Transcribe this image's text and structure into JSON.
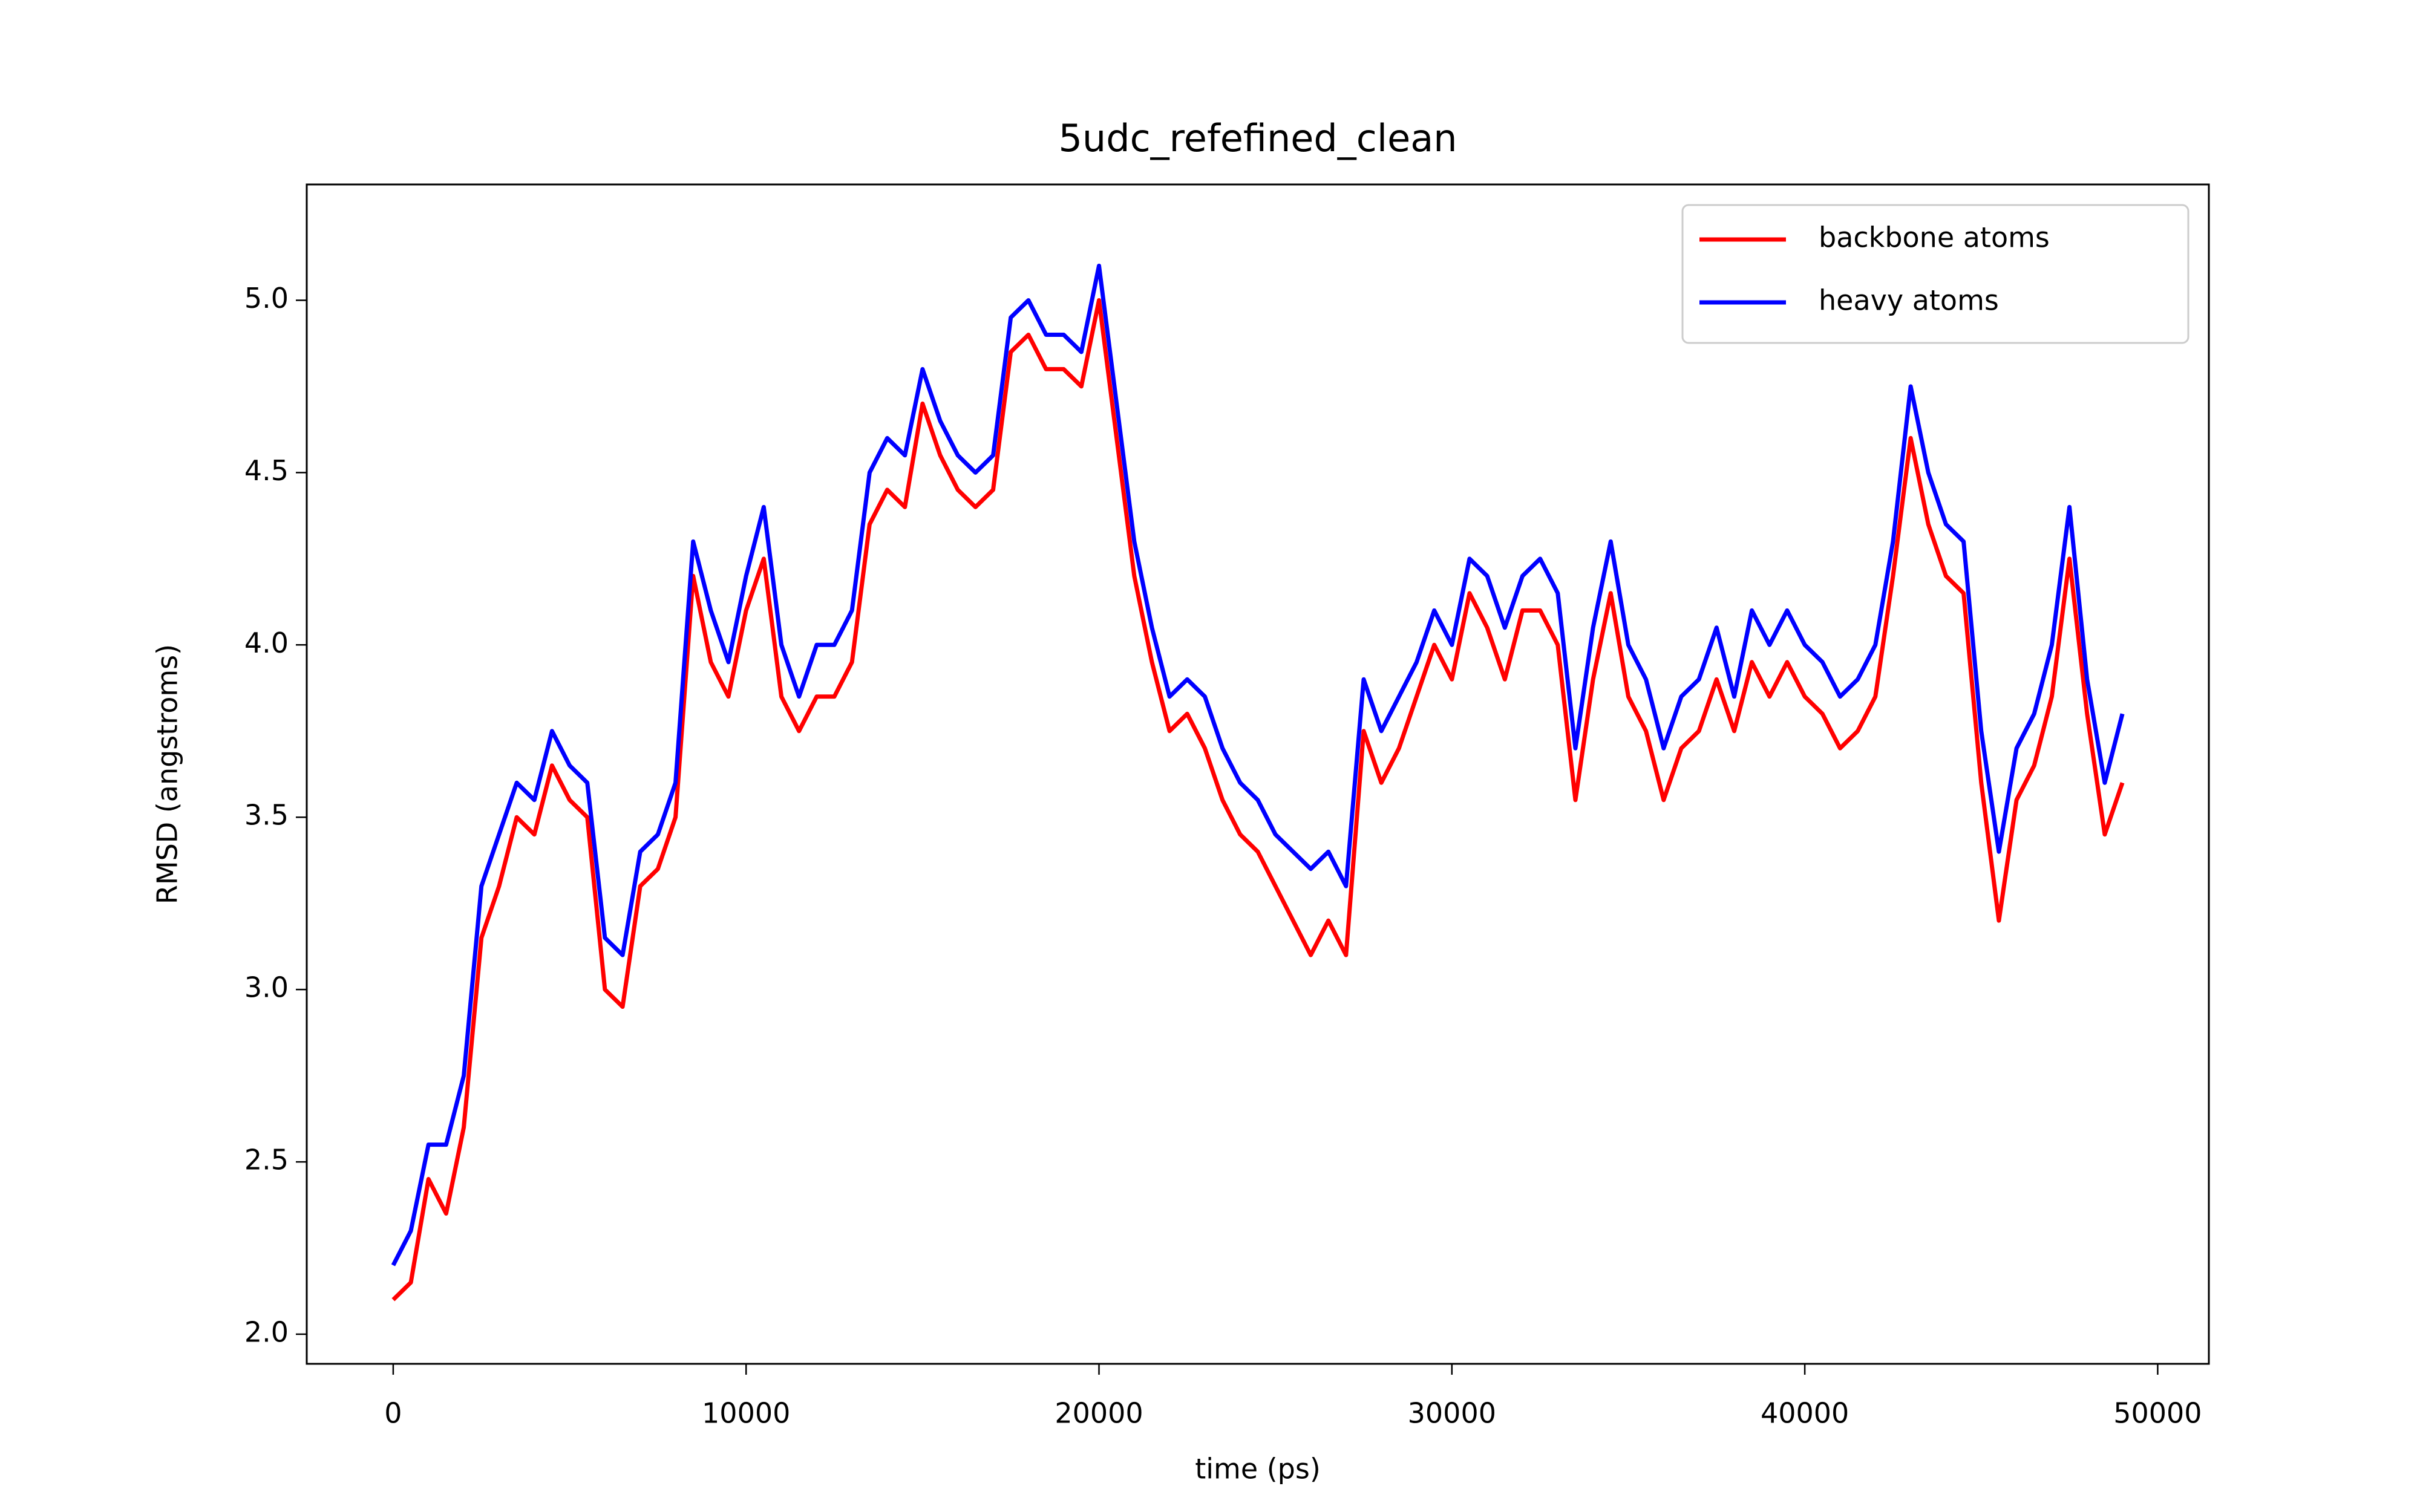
{
  "chart_data": {
    "type": "line",
    "title": "5udc_refefined_clean",
    "xlabel": "time (ps)",
    "ylabel": "RMSD (angstroms)",
    "x": [
      0,
      500,
      1000,
      1500,
      2000,
      2500,
      3000,
      3500,
      4000,
      4500,
      5000,
      5500,
      6000,
      6500,
      7000,
      7500,
      8000,
      8500,
      9000,
      9500,
      10000,
      10500,
      11000,
      11500,
      12000,
      12500,
      13000,
      13500,
      14000,
      14500,
      15000,
      15500,
      16000,
      16500,
      17000,
      17500,
      18000,
      18500,
      19000,
      19500,
      20000,
      20500,
      21000,
      21500,
      22000,
      22500,
      23000,
      23500,
      24000,
      24500,
      25000,
      25500,
      26000,
      26500,
      27000,
      27500,
      28000,
      28500,
      29000,
      29500,
      30000,
      30500,
      31000,
      31500,
      32000,
      32500,
      33000,
      33500,
      34000,
      34500,
      35000,
      35500,
      36000,
      36500,
      37000,
      37500,
      38000,
      38500,
      39000,
      39500,
      40000,
      40500,
      41000,
      41500,
      42000,
      42500,
      43000,
      43500,
      44000,
      44500,
      45000,
      45500,
      46000,
      46500,
      47000,
      47500,
      48000,
      48500,
      49000
    ],
    "series": [
      {
        "name": "backbone atoms",
        "color": "#ff0000",
        "values": [
          2.1,
          2.15,
          2.45,
          2.35,
          2.6,
          3.15,
          3.3,
          3.5,
          3.45,
          3.65,
          3.55,
          3.5,
          3.0,
          2.95,
          3.3,
          3.35,
          3.5,
          4.2,
          3.95,
          3.85,
          4.1,
          4.25,
          3.85,
          3.75,
          3.85,
          3.85,
          3.95,
          4.35,
          4.45,
          4.4,
          4.7,
          4.55,
          4.45,
          4.4,
          4.45,
          4.85,
          4.9,
          4.8,
          4.8,
          4.75,
          5.0,
          4.6,
          4.2,
          3.95,
          3.75,
          3.8,
          3.7,
          3.55,
          3.45,
          3.4,
          3.3,
          3.2,
          3.1,
          3.2,
          3.1,
          3.75,
          3.6,
          3.7,
          3.85,
          4.0,
          3.9,
          4.15,
          4.05,
          3.9,
          4.1,
          4.1,
          4.0,
          3.55,
          3.9,
          4.15,
          3.85,
          3.75,
          3.55,
          3.7,
          3.75,
          3.9,
          3.75,
          3.95,
          3.85,
          3.95,
          3.85,
          3.8,
          3.7,
          3.75,
          3.85,
          4.2,
          4.6,
          4.35,
          4.2,
          4.15,
          3.6,
          3.2,
          3.55,
          3.65,
          3.85,
          4.25,
          3.8,
          3.45,
          3.6
        ]
      },
      {
        "name": "heavy atoms",
        "color": "#0000ff",
        "values": [
          2.2,
          2.3,
          2.55,
          2.55,
          2.75,
          3.3,
          3.45,
          3.6,
          3.55,
          3.75,
          3.65,
          3.6,
          3.15,
          3.1,
          3.4,
          3.45,
          3.6,
          4.3,
          4.1,
          3.95,
          4.2,
          4.4,
          4.0,
          3.85,
          4.0,
          4.0,
          4.1,
          4.5,
          4.6,
          4.55,
          4.8,
          4.65,
          4.55,
          4.5,
          4.55,
          4.95,
          5.0,
          4.9,
          4.9,
          4.85,
          5.1,
          4.7,
          4.3,
          4.05,
          3.85,
          3.9,
          3.85,
          3.7,
          3.6,
          3.55,
          3.45,
          3.4,
          3.35,
          3.4,
          3.3,
          3.9,
          3.75,
          3.85,
          3.95,
          4.1,
          4.0,
          4.25,
          4.2,
          4.05,
          4.2,
          4.25,
          4.15,
          3.7,
          4.05,
          4.3,
          4.0,
          3.9,
          3.7,
          3.85,
          3.9,
          4.05,
          3.85,
          4.1,
          4.0,
          4.1,
          4.0,
          3.95,
          3.85,
          3.9,
          4.0,
          4.3,
          4.75,
          4.5,
          4.35,
          4.3,
          3.75,
          3.4,
          3.7,
          3.8,
          4.0,
          4.4,
          3.9,
          3.6,
          3.8
        ]
      }
    ],
    "xlim": [
      -2450,
      51450
    ],
    "xticks": [
      0,
      10000,
      20000,
      30000,
      40000,
      50000
    ],
    "ylim": [
      1.914,
      5.336
    ],
    "yticks": [
      {
        "value": 2,
        "label": "2.0"
      },
      {
        "value": 2.5,
        "label": "2.5"
      },
      {
        "value": 3,
        "label": "3.0"
      },
      {
        "value": 3.5,
        "label": "3.5"
      },
      {
        "value": 4,
        "label": "4.0"
      },
      {
        "value": 4.5,
        "label": "4.5"
      },
      {
        "value": 5,
        "label": "5.0"
      }
    ],
    "legend": "upper right"
  }
}
